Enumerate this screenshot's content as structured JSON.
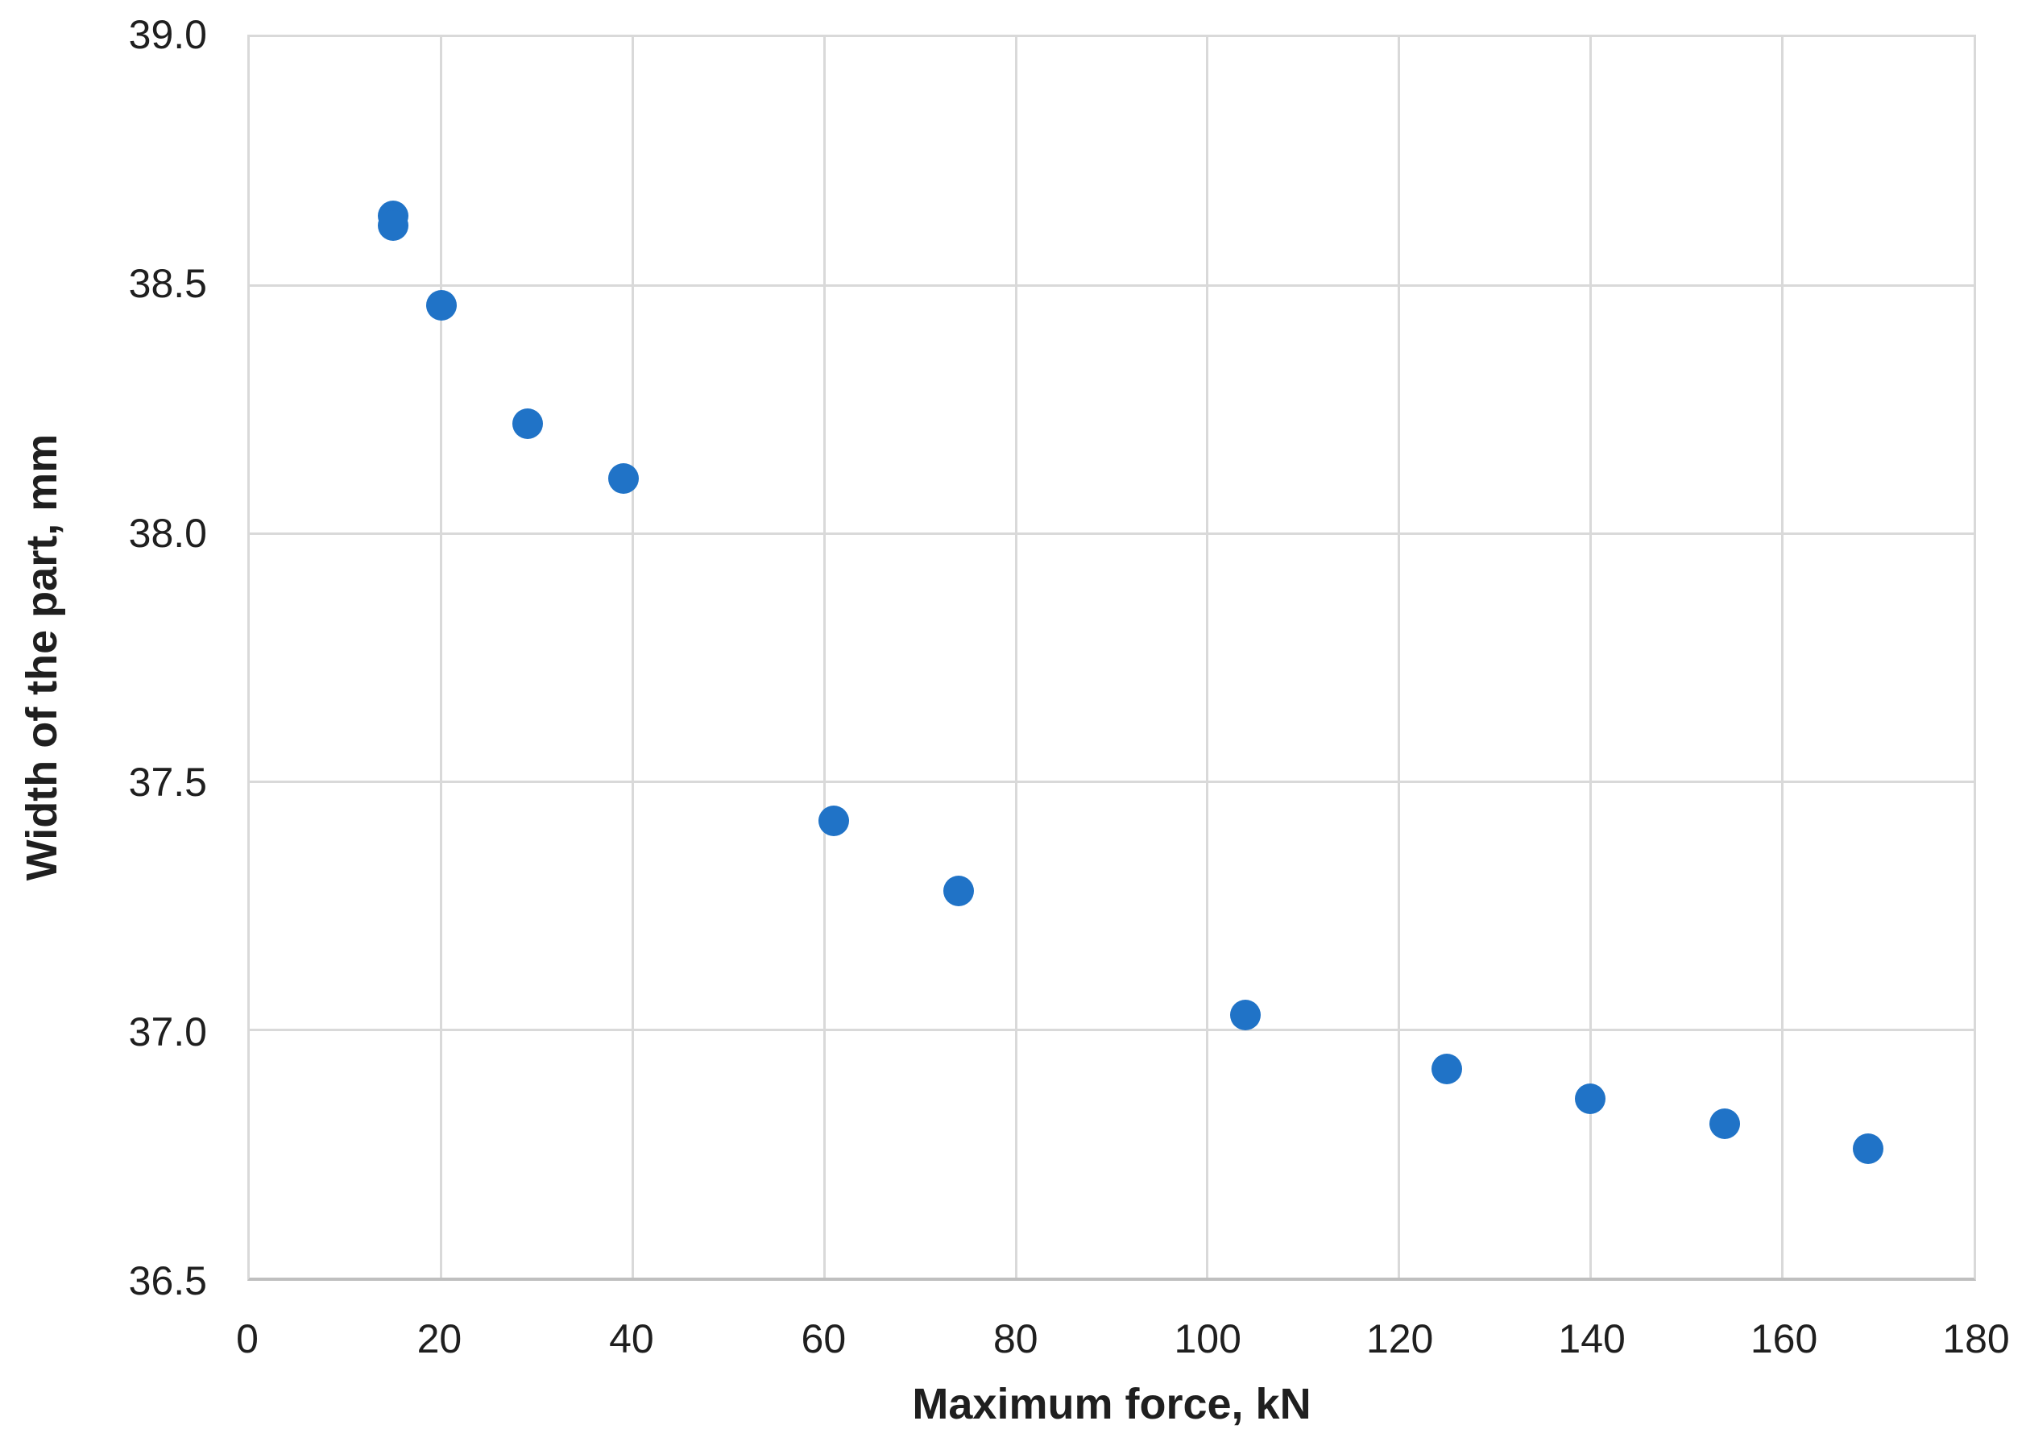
{
  "chart_data": {
    "type": "scatter",
    "title": "",
    "xlabel": "Maximum force, kN",
    "ylabel": "Width of the part, mm",
    "xlim": [
      0,
      180
    ],
    "ylim": [
      36.5,
      39.0
    ],
    "x_ticks": [
      0,
      20,
      40,
      60,
      80,
      100,
      120,
      140,
      160,
      180
    ],
    "x_tick_labels": [
      "0",
      "20",
      "40",
      "60",
      "80",
      "100",
      "120",
      "140",
      "160",
      "180"
    ],
    "y_ticks": [
      36.5,
      37.0,
      37.5,
      38.0,
      38.5,
      39.0
    ],
    "y_tick_labels": [
      "36.5",
      "37.0",
      "37.5",
      "38.0",
      "38.5",
      "39.0"
    ],
    "grid": true,
    "legend_position": "none",
    "marker_color": "#2073c7",
    "gridline_color": "#d9d9d9",
    "axis_line_color": "#bfbfbf",
    "points": [
      {
        "x": 15,
        "y": 38.64
      },
      {
        "x": 15,
        "y": 38.62
      },
      {
        "x": 20,
        "y": 38.46
      },
      {
        "x": 29,
        "y": 38.22
      },
      {
        "x": 39,
        "y": 38.11
      },
      {
        "x": 61,
        "y": 37.42
      },
      {
        "x": 74,
        "y": 37.28
      },
      {
        "x": 104,
        "y": 37.03
      },
      {
        "x": 125,
        "y": 36.92
      },
      {
        "x": 140,
        "y": 36.86
      },
      {
        "x": 154,
        "y": 36.81
      },
      {
        "x": 169,
        "y": 36.76
      }
    ]
  }
}
